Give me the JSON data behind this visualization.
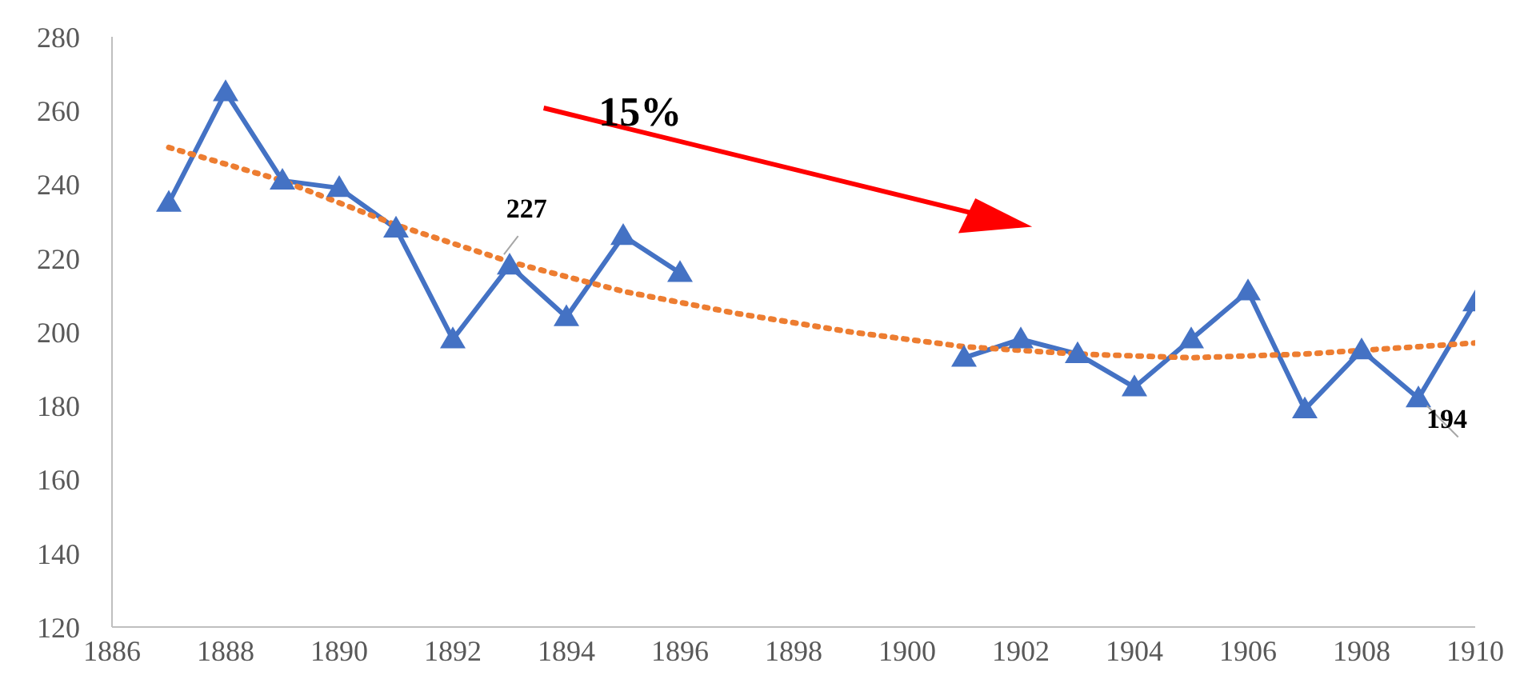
{
  "chart_data": {
    "type": "line",
    "x": [
      1887,
      1888,
      1889,
      1890,
      1891,
      1892,
      1893,
      1894,
      1895,
      1896,
      1897,
      1898,
      1899,
      1900,
      1901,
      1902,
      1903,
      1904,
      1905,
      1906,
      1907,
      1908,
      1909,
      1910
    ],
    "series": [
      {
        "color": "#4472c4",
        "marker": "triangle",
        "values": [
          235,
          265,
          241,
          239,
          228,
          198,
          218,
          204,
          226,
          216,
          null,
          null,
          null,
          null,
          193,
          198,
          194,
          185,
          198,
          211,
          179,
          195,
          182,
          208
        ]
      },
      {
        "type": "line",
        "color": "#ed7d31",
        "line_style": "dotted",
        "marker": "none",
        "x": [
          1887,
          1889,
          1891,
          1893,
          1895,
          1897,
          1899,
          1901,
          1903,
          1905,
          1907,
          1909,
          1910
        ],
        "values": [
          250,
          241,
          229,
          219,
          211,
          205,
          200,
          196,
          194,
          193,
          194,
          196,
          197
        ]
      }
    ],
    "xlim": [
      1886,
      1910
    ],
    "xticks": [
      1886,
      1888,
      1890,
      1892,
      1894,
      1896,
      1898,
      1900,
      1902,
      1904,
      1906,
      1908,
      1910
    ],
    "ylim": [
      120,
      280
    ],
    "yticks": [
      120,
      140,
      160,
      180,
      200,
      220,
      240,
      260,
      280
    ],
    "annotations": [
      "15%",
      "227",
      "194"
    ]
  }
}
